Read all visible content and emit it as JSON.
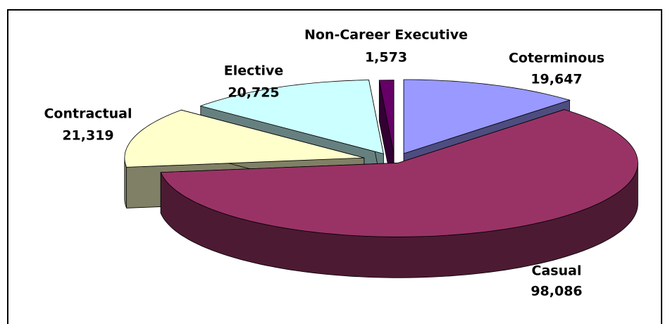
{
  "chart_data": {
    "type": "pie3d",
    "categories": [
      "Coterminous",
      "Casual",
      "Contractual",
      "Elective",
      "Non-Career Executive"
    ],
    "values": [
      19647,
      98086,
      21319,
      20725,
      1573
    ],
    "value_labels": [
      "19,647",
      "98,086",
      "21,319",
      "20,725",
      "1,573"
    ],
    "colors": [
      "#9999ff",
      "#993366",
      "#ffffcc",
      "#ccffff",
      "#660066"
    ],
    "side_colors": [
      "#4d4d80",
      "#4d1a33",
      "#808066",
      "#668080",
      "#330033"
    ]
  }
}
